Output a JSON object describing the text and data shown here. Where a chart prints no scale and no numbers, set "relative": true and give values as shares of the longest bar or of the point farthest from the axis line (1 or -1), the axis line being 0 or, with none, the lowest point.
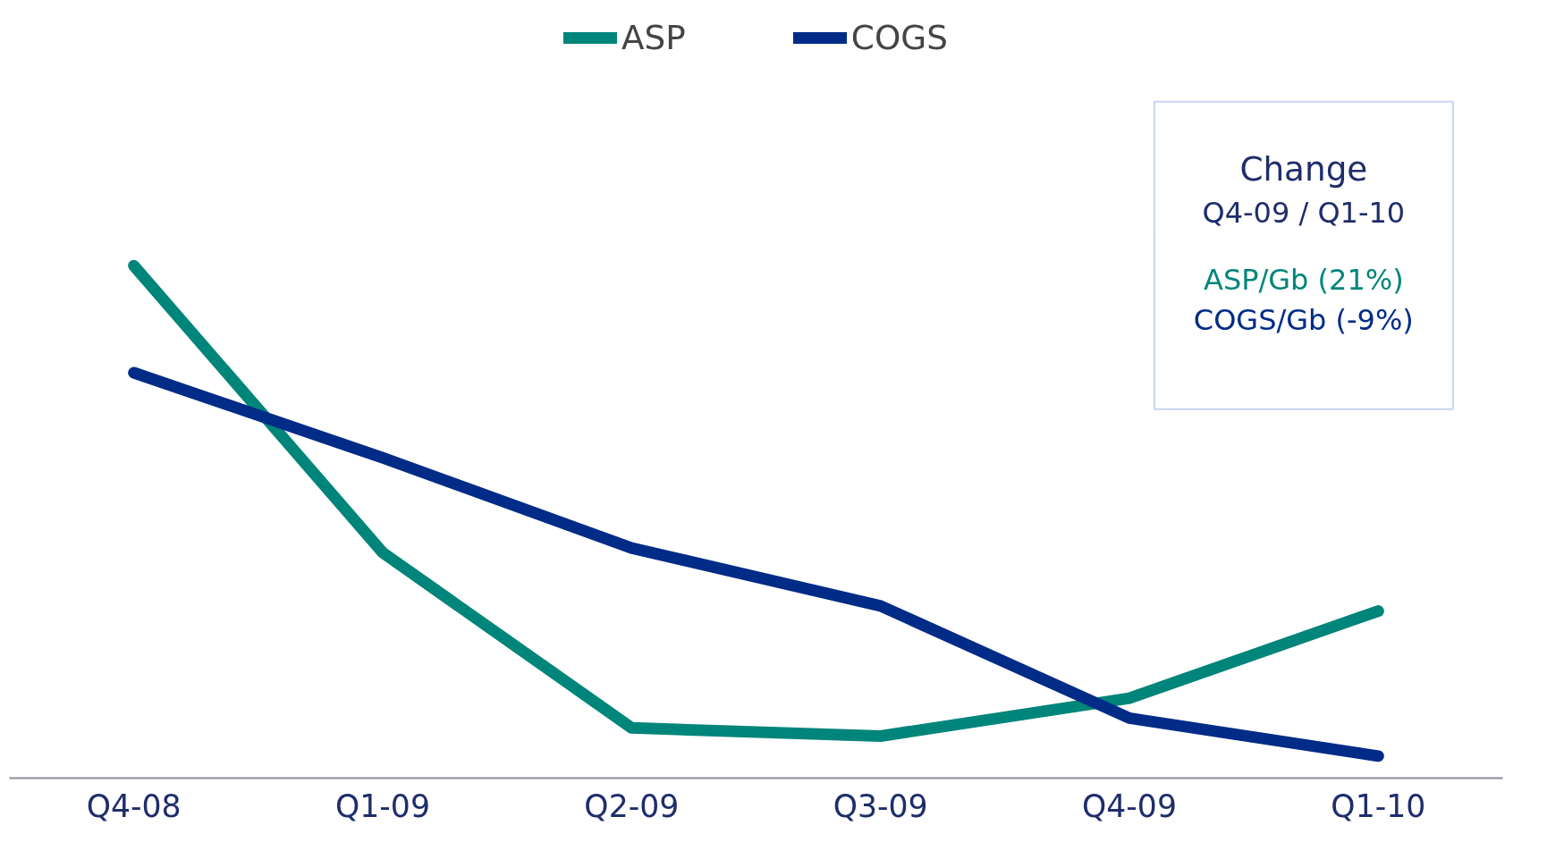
{
  "chart_data": {
    "type": "line",
    "relative": true,
    "categories": [
      "Q4-08",
      "Q1-09",
      "Q2-09",
      "Q3-09",
      "Q4-09",
      "Q1-10"
    ],
    "series": [
      {
        "name": "ASP",
        "color": "#00857a",
        "values": [
          1,
          0.44,
          0.098,
          0.082,
          0.156,
          0.326
        ]
      },
      {
        "name": "COGS",
        "color": "#002b87",
        "values": [
          0.791,
          0.625,
          0.449,
          0.336,
          0.117,
          0.043
        ]
      }
    ],
    "legend": "top",
    "marker": "none",
    "line_style": "solid",
    "annotations": [
      "Change",
      "Q4-09 / Q1-10",
      "ASP/Gb (21%)",
      "COGS/Gb (-9%)"
    ]
  }
}
